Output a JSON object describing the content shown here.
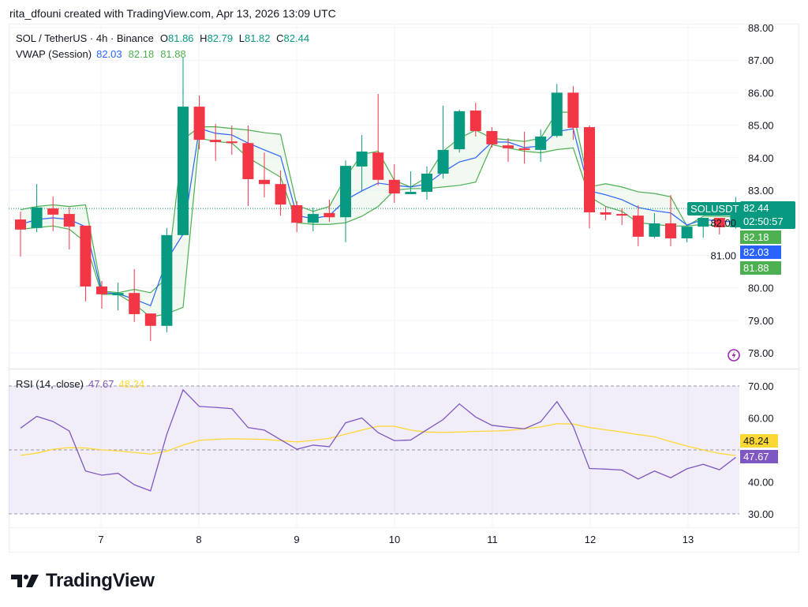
{
  "credit": "rita_dfouni created with TradingView.com, Apr 13, 2026 13:09 UTC",
  "legend": {
    "symbol": "SOL / TetherUS · 4h · Binance",
    "o_label": "O",
    "o": "81.86",
    "h_label": "H",
    "h": "82.79",
    "l_label": "L",
    "l": "81.82",
    "c_label": "C",
    "c": "82.44",
    "vwap_label": "VWAP (Session)",
    "vwap": "82.03",
    "vwap_upper": "82.18",
    "vwap_lower": "81.88",
    "rsi_label": "RSI (14, close)",
    "rsi": "47.67",
    "rsi_ma": "48.24"
  },
  "price_tags": {
    "symbol": "SOLUSDT",
    "last": "82.44",
    "countdown": "02:50:57",
    "vwap_upper": "82.18",
    "vwap": "82.03",
    "vwap_lower": "81.88",
    "rsi_ma": "48.24",
    "rsi": "47.67"
  },
  "colors": {
    "up": "#089981",
    "down": "#f23645",
    "vwap": "#2962ff",
    "vwap_band": "#4caf50",
    "rsi": "#7e57c2",
    "rsi_ma": "#fdd835"
  },
  "logo": "TradingView",
  "icons": {
    "alert": "lightning-icon",
    "logo": "tradingview-logo-icon"
  },
  "chart_data": [
    {
      "type": "candlestick",
      "title": "SOL / TetherUS · 4h · Binance",
      "x_ticks": [
        "7",
        "8",
        "9",
        "10",
        "11",
        "12",
        "13"
      ],
      "y_ticks": [
        "78.00",
        "79.00",
        "80.00",
        "81.00",
        "82.00",
        "83.00",
        "84.00",
        "85.00",
        "86.00",
        "87.00",
        "88.00"
      ],
      "ylim": [
        78,
        88
      ],
      "grid": true,
      "candles": [
        [
          82.1,
          82.34,
          80.96,
          81.79
        ],
        [
          81.84,
          83.19,
          81.71,
          82.47
        ],
        [
          82.44,
          82.81,
          81.74,
          82.25
        ],
        [
          82.27,
          82.47,
          81.18,
          81.88
        ],
        [
          81.91,
          81.91,
          79.58,
          80.04
        ],
        [
          80.04,
          80.21,
          79.36,
          79.8
        ],
        [
          79.77,
          80.16,
          79.31,
          79.84
        ],
        [
          79.84,
          80.57,
          78.95,
          79.19
        ],
        [
          79.21,
          79.21,
          78.36,
          78.83
        ],
        [
          78.83,
          81.84,
          78.63,
          81.62
        ],
        [
          81.62,
          87.08,
          81.62,
          85.57
        ],
        [
          85.57,
          85.91,
          84.26,
          84.55
        ],
        [
          84.55,
          85.04,
          83.9,
          84.48
        ],
        [
          84.5,
          84.99,
          84.09,
          84.45
        ],
        [
          84.45,
          84.99,
          82.51,
          83.34
        ],
        [
          83.32,
          84.16,
          82.78,
          83.19
        ],
        [
          83.19,
          83.61,
          82.22,
          82.56
        ],
        [
          82.54,
          82.66,
          81.71,
          82.0
        ],
        [
          82.0,
          82.47,
          81.74,
          82.27
        ],
        [
          82.3,
          82.71,
          82.03,
          82.17
        ],
        [
          82.17,
          83.92,
          81.4,
          83.75
        ],
        [
          83.73,
          84.7,
          82.98,
          84.19
        ],
        [
          84.16,
          85.96,
          83.15,
          83.32
        ],
        [
          83.32,
          83.8,
          82.61,
          82.9
        ],
        [
          82.88,
          83.58,
          82.88,
          82.95
        ],
        [
          82.95,
          83.73,
          82.71,
          83.51
        ],
        [
          83.51,
          85.6,
          83.36,
          84.24
        ],
        [
          84.26,
          85.48,
          84.16,
          85.43
        ],
        [
          85.45,
          85.69,
          84.65,
          84.82
        ],
        [
          84.82,
          84.94,
          84.31,
          84.41
        ],
        [
          84.38,
          84.6,
          83.87,
          84.29
        ],
        [
          84.29,
          84.8,
          83.82,
          84.24
        ],
        [
          84.24,
          84.87,
          83.87,
          84.65
        ],
        [
          84.67,
          86.27,
          84.62,
          86.0
        ],
        [
          86.0,
          86.2,
          84.55,
          84.92
        ],
        [
          84.94,
          84.99,
          81.83,
          82.32
        ],
        [
          82.32,
          82.49,
          82.08,
          82.25
        ],
        [
          82.27,
          82.44,
          81.93,
          82.22
        ],
        [
          82.22,
          82.54,
          81.28,
          81.57
        ],
        [
          81.57,
          82.3,
          81.52,
          81.98
        ],
        [
          81.98,
          82.85,
          81.28,
          81.52
        ],
        [
          81.52,
          81.88,
          81.4,
          81.88
        ],
        [
          81.88,
          82.15,
          81.54,
          82.15
        ],
        [
          82.15,
          82.15,
          81.64,
          81.86
        ],
        [
          81.86,
          82.79,
          81.82,
          82.44
        ]
      ],
      "candle_fields": [
        "open",
        "high",
        "low",
        "close"
      ],
      "last_price": 82.44,
      "series": [
        {
          "name": "VWAP (Session)",
          "values": [
            81.95,
            82.1,
            82.15,
            82.1,
            81.88,
            79.85,
            79.82,
            79.65,
            79.45,
            80.85,
            81.65,
            84.9,
            84.75,
            84.7,
            84.45,
            84.24,
            84.04,
            82.22,
            82.13,
            82.22,
            82.7,
            82.98,
            83.22,
            83.15,
            83.1,
            83.19,
            83.56,
            83.87,
            84.0,
            84.48,
            84.48,
            84.31,
            84.36,
            84.8,
            84.89,
            82.98,
            82.86,
            82.71,
            82.47,
            82.37,
            82.3,
            81.93,
            82.1,
            82.05,
            82.03
          ]
        },
        {
          "values": [
            82.4,
            82.5,
            82.55,
            82.5,
            82.55,
            79.9,
            79.85,
            79.95,
            79.85,
            80.3,
            84.55,
            84.95,
            84.95,
            84.9,
            84.85,
            84.77,
            84.72,
            82.54,
            82.35,
            82.5,
            83.4,
            84.1,
            84.2,
            83.3,
            83.1,
            83.4,
            84.2,
            84.6,
            84.85,
            84.6,
            84.55,
            84.5,
            84.6,
            85.4,
            85.4,
            83.1,
            83.2,
            83.1,
            82.95,
            82.9,
            82.8,
            81.9,
            82.2,
            82.2,
            82.18
          ]
        },
        {
          "values": [
            81.8,
            81.85,
            81.9,
            81.8,
            81.4,
            79.8,
            79.8,
            79.5,
            79.1,
            79.2,
            79.4,
            84.6,
            84.5,
            84.45,
            84.0,
            83.7,
            83.4,
            82.0,
            81.95,
            81.95,
            82.0,
            82.2,
            82.5,
            83.0,
            83.05,
            83.05,
            83.1,
            83.15,
            83.25,
            84.4,
            84.3,
            84.2,
            84.15,
            84.25,
            84.3,
            82.8,
            82.5,
            82.35,
            82.0,
            81.95,
            81.9,
            81.9,
            81.95,
            81.9,
            81.88
          ]
        }
      ]
    },
    {
      "type": "line",
      "title": "RSI (14, close)",
      "y_ticks": [
        "30.00",
        "40.00",
        "60.00",
        "70.00"
      ],
      "ylim": [
        30,
        70
      ],
      "bands": [
        30,
        50,
        70
      ],
      "series": [
        {
          "values": [
            56.8,
            60.5,
            58.9,
            55.9,
            43.4,
            42.1,
            42.7,
            39.1,
            37.2,
            54.9,
            68.8,
            63.6,
            63.3,
            62.9,
            57.0,
            56.2,
            53.2,
            50.2,
            51.5,
            51.0,
            58.5,
            60.0,
            55.4,
            52.9,
            53.1,
            56.3,
            59.5,
            64.4,
            60.3,
            57.7,
            57.1,
            56.6,
            58.8,
            65.1,
            57.4,
            44.2,
            44.0,
            43.7,
            40.9,
            43.4,
            41.3,
            44.1,
            45.5,
            43.8,
            47.67
          ]
        },
        {
          "values": [
            48.3,
            49.0,
            50.2,
            50.7,
            50.6,
            50.0,
            49.7,
            49.2,
            48.7,
            49.6,
            51.5,
            53.0,
            53.3,
            53.5,
            53.4,
            53.3,
            52.9,
            52.5,
            53.0,
            53.6,
            54.9,
            56.2,
            57.4,
            57.4,
            56.2,
            55.6,
            55.5,
            55.6,
            55.8,
            55.9,
            56.1,
            56.6,
            57.2,
            58.2,
            58.1,
            57.0,
            56.3,
            55.6,
            54.8,
            54.1,
            52.6,
            51.2,
            50.0,
            48.9,
            48.24
          ]
        }
      ]
    }
  ]
}
